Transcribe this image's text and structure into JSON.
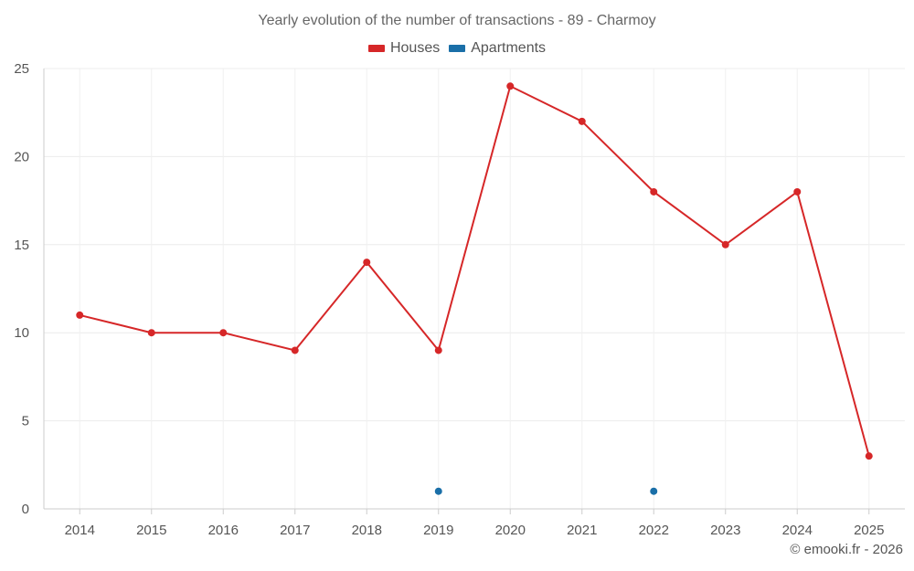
{
  "chart_data": {
    "type": "line",
    "title": "Yearly evolution of the number of transactions - 89 - Charmoy",
    "categories": [
      "2014",
      "2015",
      "2016",
      "2017",
      "2018",
      "2019",
      "2020",
      "2021",
      "2022",
      "2023",
      "2024",
      "2025"
    ],
    "series": [
      {
        "name": "Houses",
        "color": "#d62728",
        "values": [
          11,
          10,
          10,
          9,
          14,
          9,
          24,
          22,
          18,
          15,
          18,
          3
        ]
      },
      {
        "name": "Apartments",
        "color": "#1a6fa8",
        "values": [
          null,
          null,
          null,
          null,
          null,
          1,
          null,
          null,
          1,
          null,
          null,
          null
        ]
      }
    ],
    "y_ticks": [
      "0",
      "5",
      "10",
      "15",
      "20",
      "25"
    ],
    "ylim": [
      0,
      25
    ],
    "grid": true,
    "legend_position": "top-center"
  },
  "credit": "© emooki.fr - 2026"
}
